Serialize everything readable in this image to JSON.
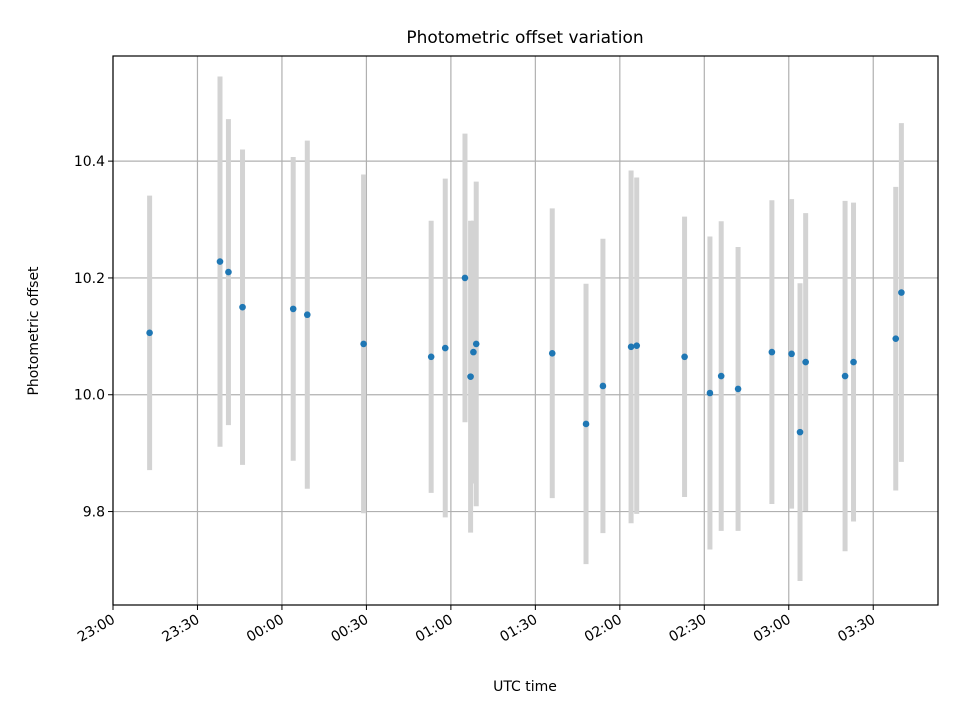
{
  "chart_data": {
    "type": "scatter",
    "title": "Photometric offset variation",
    "xlabel": "UTC time",
    "ylabel": "Photometric offset",
    "x_ticks": [
      "23:00",
      "23:30",
      "00:00",
      "00:30",
      "01:00",
      "01:30",
      "02:00",
      "02:30",
      "03:00",
      "03:30"
    ],
    "y_ticks": [
      "9.8",
      "10.0",
      "10.2",
      "10.4"
    ],
    "x_tick_minutes": [
      0,
      30,
      60,
      90,
      120,
      150,
      180,
      210,
      240,
      270
    ],
    "y_tick_values": [
      9.8,
      10.0,
      10.2,
      10.4
    ],
    "xlim_minutes": [
      0,
      293
    ],
    "ylim": [
      9.64,
      10.58
    ],
    "grid": true,
    "colors": {
      "marker": "#1f77b4",
      "errorbar": "#d3d3d3",
      "grid": "#b0b0b0"
    },
    "series": [
      {
        "points": [
          {
            "time": "23:13",
            "y": 10.106,
            "err": 0.235
          },
          {
            "time": "23:38",
            "y": 10.228,
            "err": 0.317
          },
          {
            "time": "23:41",
            "y": 10.21,
            "err": 0.262
          },
          {
            "time": "23:46",
            "y": 10.15,
            "err": 0.27
          },
          {
            "time": "00:04",
            "y": 10.147,
            "err": 0.26
          },
          {
            "time": "00:09",
            "y": 10.137,
            "err": 0.298
          },
          {
            "time": "00:29",
            "y": 10.087,
            "err": 0.29
          },
          {
            "time": "00:53",
            "y": 10.065,
            "err": 0.233
          },
          {
            "time": "00:58",
            "y": 10.08,
            "err": 0.29
          },
          {
            "time": "01:05",
            "y": 10.2,
            "err": 0.247
          },
          {
            "time": "01:07",
            "y": 10.031,
            "err": 0.267
          },
          {
            "time": "01:08",
            "y": 10.073,
            "err": 0.225
          },
          {
            "time": "01:09",
            "y": 10.087,
            "err": 0.278
          },
          {
            "time": "01:36",
            "y": 10.071,
            "err": 0.248
          },
          {
            "time": "01:48",
            "y": 9.95,
            "err": 0.24
          },
          {
            "time": "01:54",
            "y": 10.015,
            "err": 0.252
          },
          {
            "time": "02:04",
            "y": 10.082,
            "err": 0.302
          },
          {
            "time": "02:06",
            "y": 10.084,
            "err": 0.288
          },
          {
            "time": "02:23",
            "y": 10.065,
            "err": 0.24
          },
          {
            "time": "02:32",
            "y": 10.003,
            "err": 0.268
          },
          {
            "time": "02:36",
            "y": 10.032,
            "err": 0.265
          },
          {
            "time": "02:42",
            "y": 10.01,
            "err": 0.243
          },
          {
            "time": "02:54",
            "y": 10.073,
            "err": 0.26
          },
          {
            "time": "03:01",
            "y": 10.07,
            "err": 0.265
          },
          {
            "time": "03:04",
            "y": 9.936,
            "err": 0.255
          },
          {
            "time": "03:06",
            "y": 10.056,
            "err": 0.255
          },
          {
            "time": "03:20",
            "y": 10.032,
            "err": 0.3
          },
          {
            "time": "03:23",
            "y": 10.056,
            "err": 0.273
          },
          {
            "time": "03:38",
            "y": 10.096,
            "err": 0.26
          },
          {
            "time": "03:40",
            "y": 10.175,
            "err": 0.29
          }
        ]
      }
    ]
  }
}
